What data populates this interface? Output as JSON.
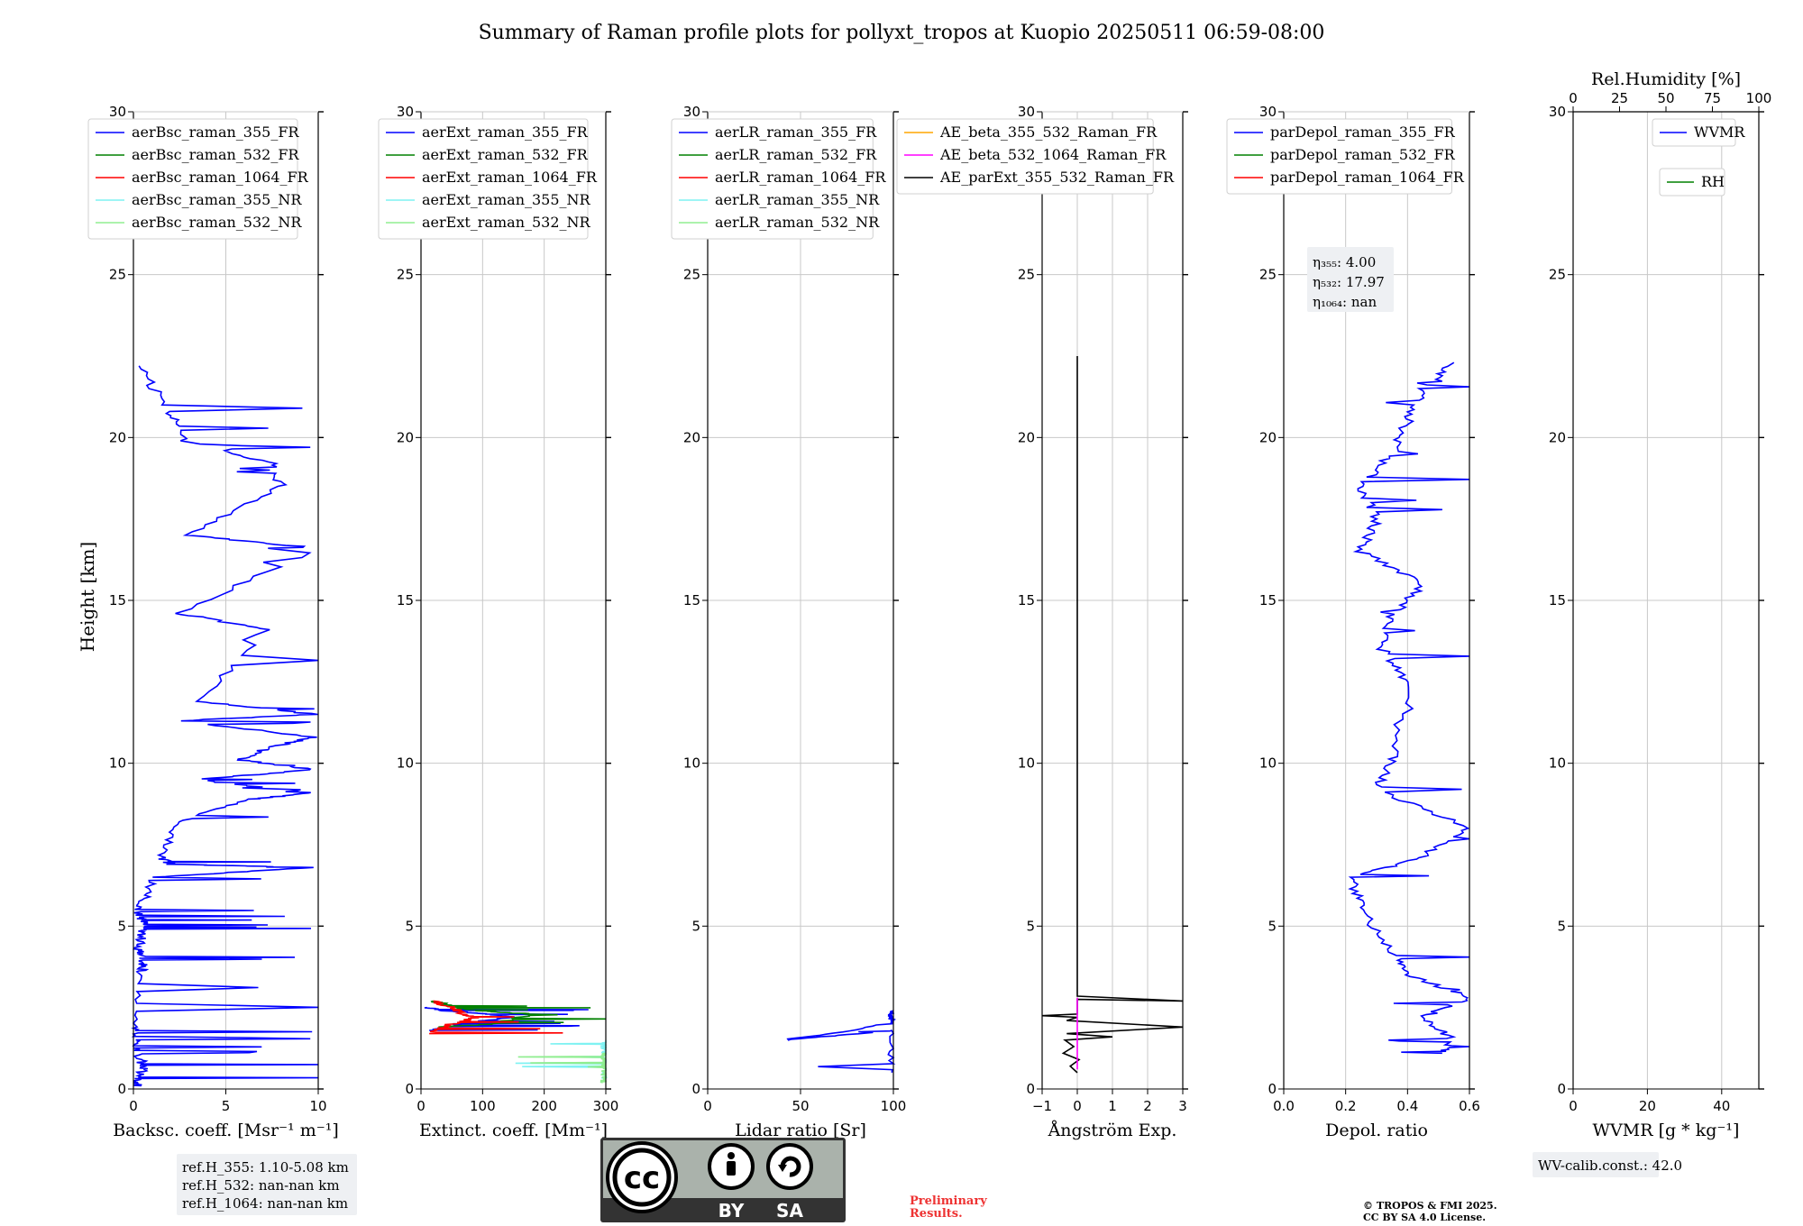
{
  "title": "Summary of Raman profile plots for pollyxt_tropos at Kuopio 20250511 06:59-08:00",
  "ylabel": "Height [km]",
  "yticks": [
    "0",
    "5",
    "10",
    "15",
    "20",
    "25",
    "30"
  ],
  "chart_data": [
    {
      "type": "line",
      "id": "backscatter",
      "xlabel": "Backsc. coeff. [Msr⁻¹ m⁻¹]",
      "xlim": [
        0,
        10
      ],
      "xticks": [
        "0",
        "5",
        "10"
      ],
      "ylim": [
        0,
        30
      ],
      "grid": true,
      "legend_placement": "top-left",
      "series": [
        {
          "name": "aerBsc_raman_355_FR",
          "color": "#0000ff",
          "style": "noisy-profile",
          "points": [
            [
              0.2,
              0.1
            ],
            [
              0.3,
              0.3
            ],
            [
              0.5,
              0.6
            ],
            [
              0.4,
              0.9
            ],
            [
              0.1,
              1.4
            ],
            [
              0.0,
              1.9
            ],
            [
              0.4,
              3.6
            ],
            [
              0.6,
              3.9
            ],
            [
              0.3,
              4.3
            ],
            [
              0.5,
              4.8
            ],
            [
              0.8,
              5.1
            ],
            [
              0.2,
              5.3
            ],
            [
              0.6,
              5.8
            ],
            [
              1.2,
              6.5
            ],
            [
              9.6,
              6.8
            ],
            [
              2.0,
              6.9
            ],
            [
              1.5,
              7.1
            ],
            [
              2.3,
              8.2
            ],
            [
              6.5,
              8.9
            ],
            [
              9.5,
              9.1
            ],
            [
              3.3,
              9.5
            ],
            [
              9.8,
              9.8
            ],
            [
              5.8,
              10.1
            ],
            [
              7.4,
              10.5
            ],
            [
              9.8,
              10.8
            ],
            [
              2.5,
              11.3
            ],
            [
              9.8,
              11.5
            ],
            [
              3.6,
              11.9
            ],
            [
              7.1,
              14.1
            ],
            [
              2.5,
              14.6
            ],
            [
              9.9,
              16.6
            ],
            [
              3.0,
              17.0
            ],
            [
              8.0,
              18.5
            ],
            [
              7.5,
              19.2
            ],
            [
              2.8,
              19.9
            ],
            [
              1.9,
              20.8
            ],
            [
              0.3,
              22.2
            ]
          ]
        }
      ],
      "legend": [
        "aerBsc_raman_355_FR",
        "aerBsc_raman_532_FR",
        "aerBsc_raman_1064_FR",
        "aerBsc_raman_355_NR",
        "aerBsc_raman_532_NR"
      ],
      "legend_colors": [
        "#0000ff",
        "#008000",
        "#ff0000",
        "#7ff2f2",
        "#90ee90"
      ]
    },
    {
      "type": "line",
      "id": "extinction",
      "xlabel": "Extinct. coeff. [Mm⁻¹]",
      "xlim": [
        0,
        300
      ],
      "xticks": [
        "0",
        "100",
        "200",
        "300"
      ],
      "ylim": [
        0,
        30
      ],
      "grid": true,
      "legend_placement": "top-left",
      "series": [
        {
          "name": "aerExt_raman_355_FR",
          "color": "#0000ff",
          "style": "noisy-profile",
          "points": [
            [
              20,
              1.8
            ],
            [
              60,
              2.0
            ],
            [
              150,
              2.2
            ],
            [
              110,
              2.3
            ],
            [
              40,
              2.4
            ],
            [
              10,
              2.5
            ]
          ]
        },
        {
          "name": "aerExt_raman_532_FR",
          "color": "#008000",
          "style": "noisy-profile",
          "points": [
            [
              30,
              1.9
            ],
            [
              120,
              2.0
            ],
            [
              180,
              2.3
            ],
            [
              95,
              2.4
            ],
            [
              60,
              2.5
            ],
            [
              20,
              2.7
            ]
          ]
        },
        {
          "name": "aerExt_raman_1064_FR",
          "color": "#ff0000",
          "style": "noisy-profile",
          "points": [
            [
              10,
              1.7
            ],
            [
              50,
              2.0
            ],
            [
              90,
              2.2
            ],
            [
              70,
              2.3
            ],
            [
              50,
              2.5
            ],
            [
              20,
              2.7
            ]
          ]
        },
        {
          "name": "aerExt_raman_355_NR",
          "color": "#7ff2f2",
          "style": "noisy-profile",
          "points": [
            [
              300,
              0.3
            ],
            [
              300,
              0.6
            ],
            [
              300,
              0.9
            ],
            [
              300,
              1.1
            ],
            [
              300,
              1.3
            ],
            [
              300,
              1.5
            ]
          ]
        },
        {
          "name": "aerExt_raman_532_NR",
          "color": "#90ee90",
          "style": "noisy-profile",
          "points": [
            [
              300,
              0.2
            ],
            [
              300,
              0.4
            ],
            [
              300,
              0.7
            ],
            [
              300,
              0.9
            ],
            [
              300,
              1.1
            ]
          ]
        }
      ],
      "legend": [
        "aerExt_raman_355_FR",
        "aerExt_raman_532_FR",
        "aerExt_raman_1064_FR",
        "aerExt_raman_355_NR",
        "aerExt_raman_532_NR"
      ],
      "legend_colors": [
        "#0000ff",
        "#008000",
        "#ff0000",
        "#7ff2f2",
        "#90ee90"
      ]
    },
    {
      "type": "line",
      "id": "lidar-ratio",
      "xlabel": "Lidar ratio [Sr]",
      "xlim": [
        0,
        120
      ],
      "xticks": [
        "0",
        "50",
        "100"
      ],
      "ylim": [
        0,
        30
      ],
      "grid": true,
      "legend_placement": "top-left",
      "series": [
        {
          "name": "aerLR_raman_355_FR",
          "color": "#0000ff",
          "style": "noisy-profile",
          "points": [
            [
              120,
              0.5
            ],
            [
              120,
              1.8
            ],
            [
              50,
              1.5
            ],
            [
              120,
              2.0
            ],
            [
              120,
              2.2
            ],
            [
              120,
              2.4
            ]
          ]
        }
      ],
      "legend": [
        "aerLR_raman_355_FR",
        "aerLR_raman_532_FR",
        "aerLR_raman_1064_FR",
        "aerLR_raman_355_NR",
        "aerLR_raman_532_NR"
      ],
      "legend_colors": [
        "#0000ff",
        "#008000",
        "#ff0000",
        "#7ff2f2",
        "#90ee90"
      ]
    },
    {
      "type": "line",
      "id": "angstrom",
      "xlabel": "Ångström Exp.",
      "xlim": [
        -1,
        3
      ],
      "xticks": [
        "−1",
        "0",
        "1",
        "2",
        "3"
      ],
      "ylim": [
        0,
        30
      ],
      "grid": true,
      "legend_placement": "top",
      "series": [
        {
          "name": "AE_parExt_355_532_Raman_FR",
          "color": "#000000",
          "style": "smooth",
          "points": [
            [
              0.0,
              0.5
            ],
            [
              -0.2,
              0.7
            ],
            [
              0.05,
              0.9
            ],
            [
              -0.4,
              1.1
            ],
            [
              -0.1,
              1.3
            ],
            [
              -0.35,
              1.5
            ],
            [
              1.0,
              1.6
            ],
            [
              -0.3,
              1.7
            ],
            [
              3.0,
              1.9
            ],
            [
              -0.3,
              2.1
            ],
            [
              0,
              2.2
            ],
            [
              -1.0,
              2.25
            ],
            [
              0,
              2.3
            ],
            [
              0,
              2.75
            ],
            [
              3.0,
              2.7
            ],
            [
              0,
              2.85
            ],
            [
              0,
              22.5
            ]
          ]
        },
        {
          "name": "AE_beta_532_1064_Raman_FR",
          "color": "#ff00ff",
          "style": "smooth",
          "points": [
            [
              0,
              0.6
            ],
            [
              0,
              2.8
            ]
          ]
        }
      ],
      "legend": [
        "AE_beta_355_532_Raman_FR",
        "AE_beta_532_1064_Raman_FR",
        "AE_parExt_355_532_Raman_FR"
      ],
      "legend_colors": [
        "#ffa500",
        "#ff00ff",
        "#000000"
      ]
    },
    {
      "type": "line",
      "id": "depol",
      "xlabel": "Depol. ratio",
      "xlim": [
        0,
        0.6
      ],
      "xticks": [
        "0.0",
        "0.2",
        "0.4",
        "0.6"
      ],
      "ylim": [
        0,
        30
      ],
      "grid": true,
      "legend_placement": "top-left",
      "series": [
        {
          "name": "parDepol_raman_355_FR",
          "color": "#0000ff",
          "style": "noisy-profile",
          "points": [
            [
              0.5,
              1.1
            ],
            [
              0.55,
              1.5
            ],
            [
              0.45,
              2.2
            ],
            [
              0.6,
              2.8
            ],
            [
              0.4,
              3.5
            ],
            [
              0.35,
              4.2
            ],
            [
              0.25,
              5.5
            ],
            [
              0.22,
              6.5
            ],
            [
              0.45,
              7.1
            ],
            [
              0.6,
              8.0
            ],
            [
              0.3,
              9.2
            ],
            [
              0.35,
              10.2
            ],
            [
              0.4,
              12.5
            ],
            [
              0.32,
              13.5
            ],
            [
              0.35,
              14.5
            ],
            [
              0.45,
              15.5
            ],
            [
              0.25,
              16.5
            ],
            [
              0.3,
              17.5
            ],
            [
              0.25,
              18.5
            ],
            [
              0.35,
              19.5
            ],
            [
              0.4,
              20.5
            ],
            [
              0.45,
              21.5
            ],
            [
              0.55,
              22.3
            ]
          ]
        }
      ],
      "legend": [
        "parDepol_raman_355_FR",
        "parDepol_raman_532_FR",
        "parDepol_raman_1064_FR"
      ],
      "legend_colors": [
        "#0000ff",
        "#008000",
        "#ff0000"
      ]
    },
    {
      "type": "line",
      "id": "wvmr",
      "xlabel": "WVMR [g * kg⁻¹]",
      "xlim": [
        0,
        50
      ],
      "xticks": [
        "0",
        "20",
        "40"
      ],
      "x2label": "Rel.Humidity [%]",
      "x2lim": [
        0,
        100
      ],
      "x2ticks": [
        "0",
        "25",
        "50",
        "75",
        "100"
      ],
      "ylim": [
        0,
        30
      ],
      "grid": true,
      "legend_placement": "top-right",
      "series": [],
      "legend": [
        "WVMR",
        "RH"
      ],
      "legend_colors": [
        "#0000ff",
        "#008000"
      ]
    }
  ],
  "annotations": {
    "eta_355": "η₃₅₅: 4.00",
    "eta_532": "η₅₃₂: 17.97",
    "eta_1064": "η₁₀₆₄: nan",
    "refh_355": "ref.H_355: 1.10-5.08 km",
    "refh_532": "ref.H_532: nan-nan km",
    "refh_1064": "ref.H_1064: nan-nan km",
    "wv_calib": "WV-calib.const.: 42.0",
    "preliminary_line1": "Preliminary",
    "preliminary_line2": "Results.",
    "copyright_line1": "© TROPOS & FMI 2025.",
    "copyright_line2": "CC BY SA 4.0 License."
  },
  "license_badge": {
    "cc": "cc",
    "by": "BY",
    "sa": "SA",
    "bg_color": "#aab2ab",
    "bar_color": "#333333"
  }
}
